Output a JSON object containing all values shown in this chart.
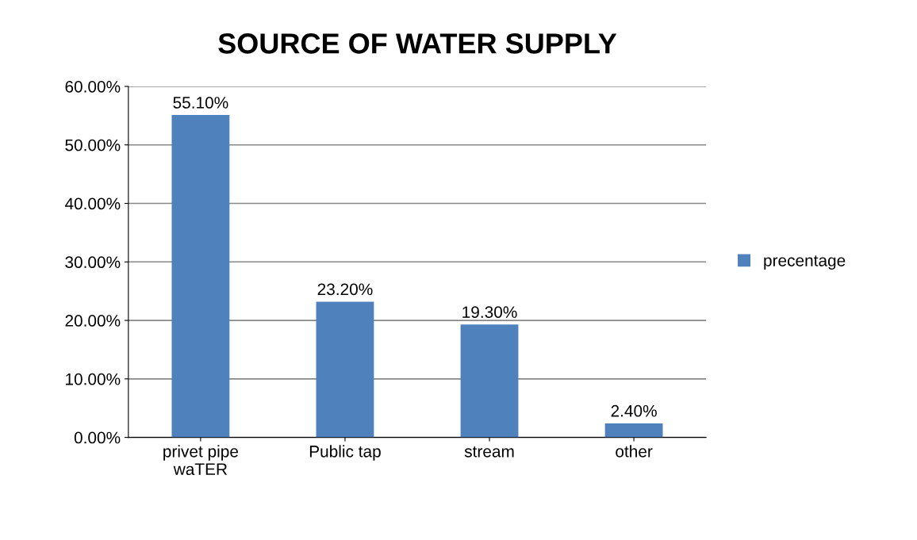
{
  "chart_data": {
    "type": "bar",
    "title": "SOURCE OF WATER SUPPLY",
    "categories": [
      "privet pipe\nwaTER",
      "Public tap",
      "stream",
      "other"
    ],
    "series": [
      {
        "name": "precentage",
        "color": "#4f81bd",
        "values": [
          55.1,
          23.2,
          19.3,
          2.4
        ],
        "value_labels": [
          "55.10%",
          "23.20%",
          "19.30%",
          "2.40%"
        ]
      }
    ],
    "ylim": [
      0,
      60
    ],
    "yticks": [
      {
        "value": 0,
        "label": "0.00%"
      },
      {
        "value": 10,
        "label": "10.00%"
      },
      {
        "value": 20,
        "label": "20.00%"
      },
      {
        "value": 30,
        "label": "30.00%"
      },
      {
        "value": 40,
        "label": "40.00%"
      },
      {
        "value": 50,
        "label": "50.00%"
      },
      {
        "value": 60,
        "label": "60.00%"
      }
    ],
    "grid": "y",
    "legend": "right"
  }
}
